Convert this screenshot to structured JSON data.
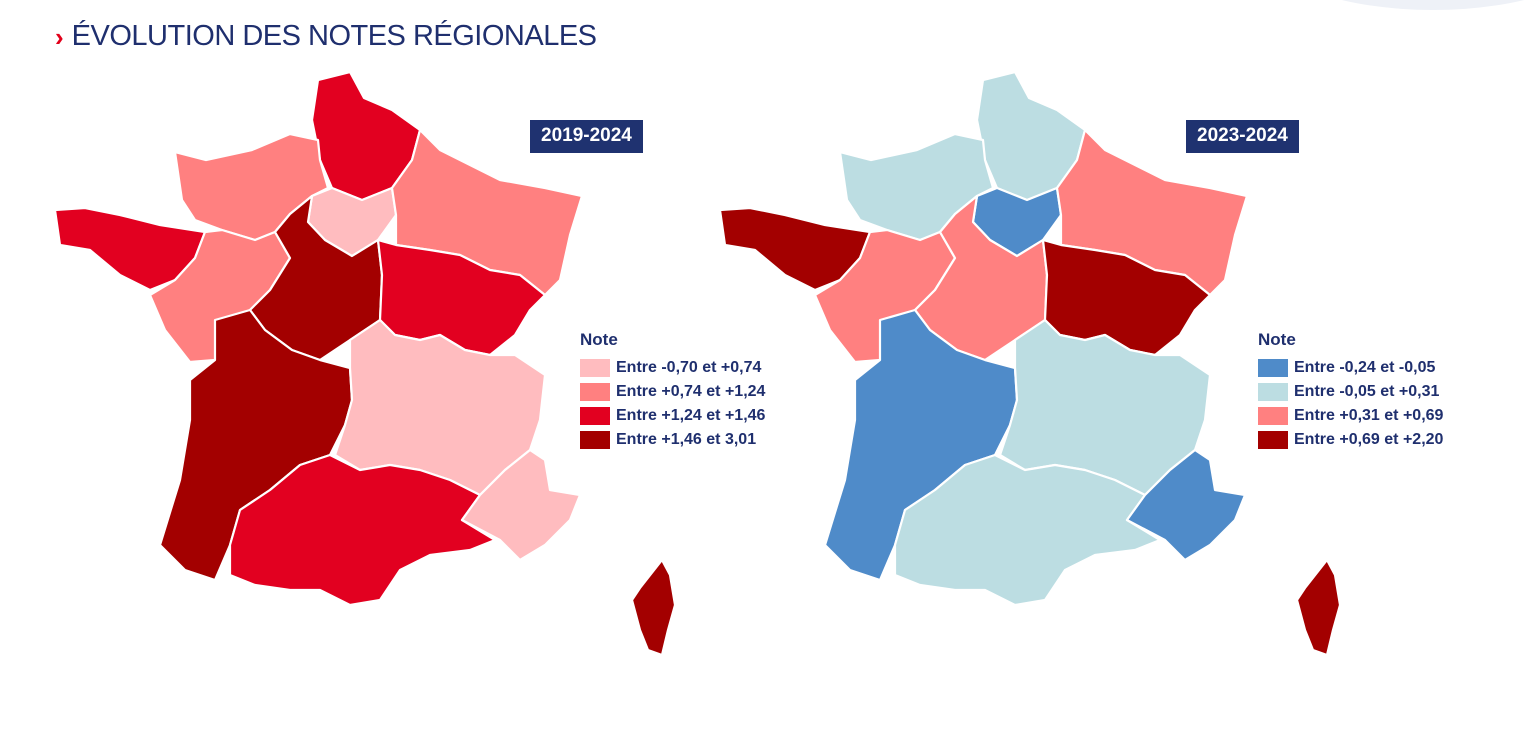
{
  "title": "ÉVOLUTION DES NOTES RÉGIONALES",
  "maps": [
    {
      "period": "2019-2024",
      "legend": {
        "title": "Note",
        "items": [
          {
            "label": "Entre -0,70 et +0,74",
            "color": "#ffbcbf"
          },
          {
            "label": "Entre +0,74 et +1,24",
            "color": "#ff8080"
          },
          {
            "label": "Entre +1,24 et +1,46",
            "color": "#e20020"
          },
          {
            "label": "Entre +1,46 et 3,01",
            "color": "#a30000"
          }
        ]
      },
      "regions": {
        "hauts-de-france": 2,
        "normandie": 1,
        "ile-de-france": 0,
        "grand-est": 1,
        "bretagne": 2,
        "pays-de-la-loire": 1,
        "centre-val-de-loire": 3,
        "bourgogne-franche-comte": 2,
        "nouvelle-aquitaine": 3,
        "auvergne-rhone-alpes": 0,
        "occitanie": 2,
        "provence-alpes-cote-d-azur": 0,
        "corse": 3
      }
    },
    {
      "period": "2023-2024",
      "legend": {
        "title": "Note",
        "items": [
          {
            "label": "Entre -0,24 et -0,05",
            "color": "#4f8bc9"
          },
          {
            "label": "Entre -0,05 et +0,31",
            "color": "#bcdde2"
          },
          {
            "label": "Entre +0,31 et +0,69",
            "color": "#ff8080"
          },
          {
            "label": "Entre +0,69 et +2,20",
            "color": "#a30000"
          }
        ]
      },
      "regions": {
        "hauts-de-france": 1,
        "normandie": 1,
        "ile-de-france": 0,
        "grand-est": 2,
        "bretagne": 3,
        "pays-de-la-loire": 2,
        "centre-val-de-loire": 2,
        "bourgogne-franche-comte": 3,
        "nouvelle-aquitaine": 0,
        "auvergne-rhone-alpes": 1,
        "occitanie": 1,
        "provence-alpes-cote-d-azur": 0,
        "corse": 3
      }
    }
  ]
}
